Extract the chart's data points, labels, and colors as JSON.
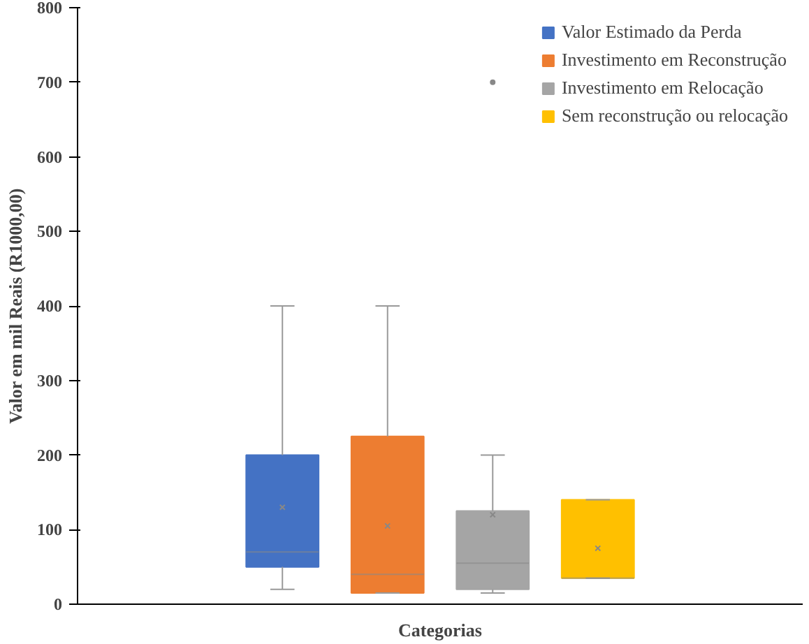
{
  "chart_data": {
    "type": "box",
    "xlabel": "Categorias",
    "ylabel": "Valor em mil Reais (R1000,00)",
    "categories": [
      null
    ],
    "ylim": [
      0,
      800
    ],
    "yticks": [
      0,
      100,
      200,
      300,
      400,
      500,
      600,
      700,
      800
    ],
    "grid": false,
    "legend": "top right",
    "series": [
      {
        "name": "Valor Estimado da Perda",
        "color": "#4472c4",
        "boxes": [
          {
            "low": 20,
            "q1": 50,
            "median": 70,
            "q3": 200,
            "high": 400,
            "mean": 130
          }
        ]
      },
      {
        "name": "Investimento em Reconstrução",
        "color": "#ed7d31",
        "boxes": [
          {
            "low": 15,
            "q1": 15,
            "median": 40,
            "q3": 225,
            "high": 400,
            "mean": 105
          }
        ]
      },
      {
        "name": "Investimento em Relocação",
        "color": "#a5a5a5",
        "boxes": [
          {
            "low": 15,
            "q1": 20,
            "median": 55,
            "q3": 125,
            "high": 200,
            "mean": 120,
            "outliers": [
              700
            ]
          }
        ]
      },
      {
        "name": "Sem reconstrução ou relocação",
        "color": "#ffc000",
        "boxes": [
          {
            "low": 35,
            "q1": 35,
            "median": 35,
            "q3": 140,
            "high": 140,
            "mean": 75
          }
        ]
      }
    ]
  }
}
